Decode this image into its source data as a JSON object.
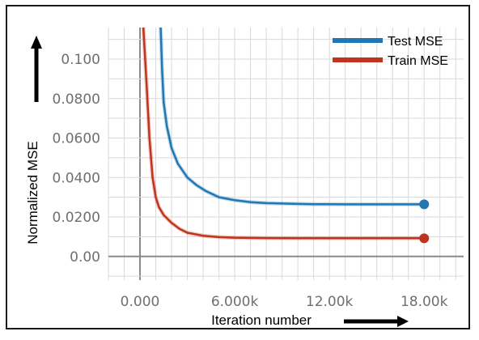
{
  "chart_data": {
    "type": "line",
    "xlabel": "Iteration number",
    "ylabel": "Normalized MSE",
    "xlim": [
      -2000,
      20500
    ],
    "ylim": [
      -0.012,
      0.116
    ],
    "x_ticks": [
      0,
      6000,
      12000,
      18000
    ],
    "x_tick_labels": [
      "0.000",
      "6.000k",
      "12.00k",
      "18.00k"
    ],
    "y_ticks": [
      0,
      0.02,
      0.04,
      0.06,
      0.08,
      0.1
    ],
    "y_tick_labels": [
      "0.00",
      "0.0200",
      "0.0400",
      "0.0600",
      "0.0800",
      "0.100"
    ],
    "grid": true,
    "legend_position": "top-right",
    "series": [
      {
        "name": "Test MSE",
        "color": "#1f77b4",
        "x": [
          1300,
          1400,
          1500,
          1700,
          2000,
          2400,
          3000,
          3600,
          4200,
          5000,
          6000,
          7000,
          8000,
          9000,
          10000,
          11000,
          12000,
          13000,
          14000,
          15000,
          16000,
          17000,
          18000
        ],
        "y": [
          0.118,
          0.095,
          0.078,
          0.066,
          0.055,
          0.047,
          0.04,
          0.036,
          0.033,
          0.03,
          0.0285,
          0.0275,
          0.027,
          0.0268,
          0.0266,
          0.0265,
          0.0265,
          0.0264,
          0.0264,
          0.0264,
          0.0264,
          0.0264,
          0.0264
        ]
      },
      {
        "name": "Train MSE",
        "color": "#c0341d",
        "x": [
          200,
          400,
          600,
          800,
          1000,
          1200,
          1500,
          2000,
          2500,
          3000,
          4000,
          5000,
          6000,
          8000,
          10000,
          12000,
          14000,
          16000,
          18000
        ],
        "y": [
          0.118,
          0.09,
          0.06,
          0.04,
          0.03,
          0.025,
          0.021,
          0.017,
          0.014,
          0.012,
          0.0105,
          0.0098,
          0.0095,
          0.0093,
          0.0092,
          0.0092,
          0.0092,
          0.0092,
          0.0092
        ]
      }
    ],
    "end_markers": true
  }
}
